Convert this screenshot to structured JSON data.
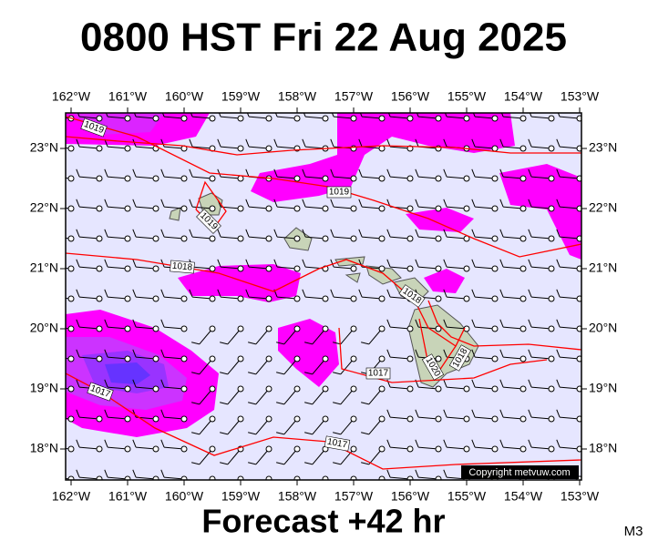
{
  "header": {
    "title": "0800 HST Fri 22 Aug 2025"
  },
  "map": {
    "lon_labels": [
      "162°W",
      "161°W",
      "160°W",
      "159°W",
      "158°W",
      "157°W",
      "156°W",
      "155°W",
      "154°W",
      "153°W"
    ],
    "lat_labels": [
      "23°N",
      "22°N",
      "21°N",
      "20°N",
      "19°N",
      "18°N"
    ],
    "isobar_labels": [
      "1019",
      "1019",
      "1019",
      "1018",
      "1018",
      "1017",
      "1017",
      "1020",
      "1018",
      "1017"
    ],
    "copyright": "Copyright metvuw.com"
  },
  "footer": {
    "forecast": "Forecast +42 hr",
    "model": "M3"
  }
}
